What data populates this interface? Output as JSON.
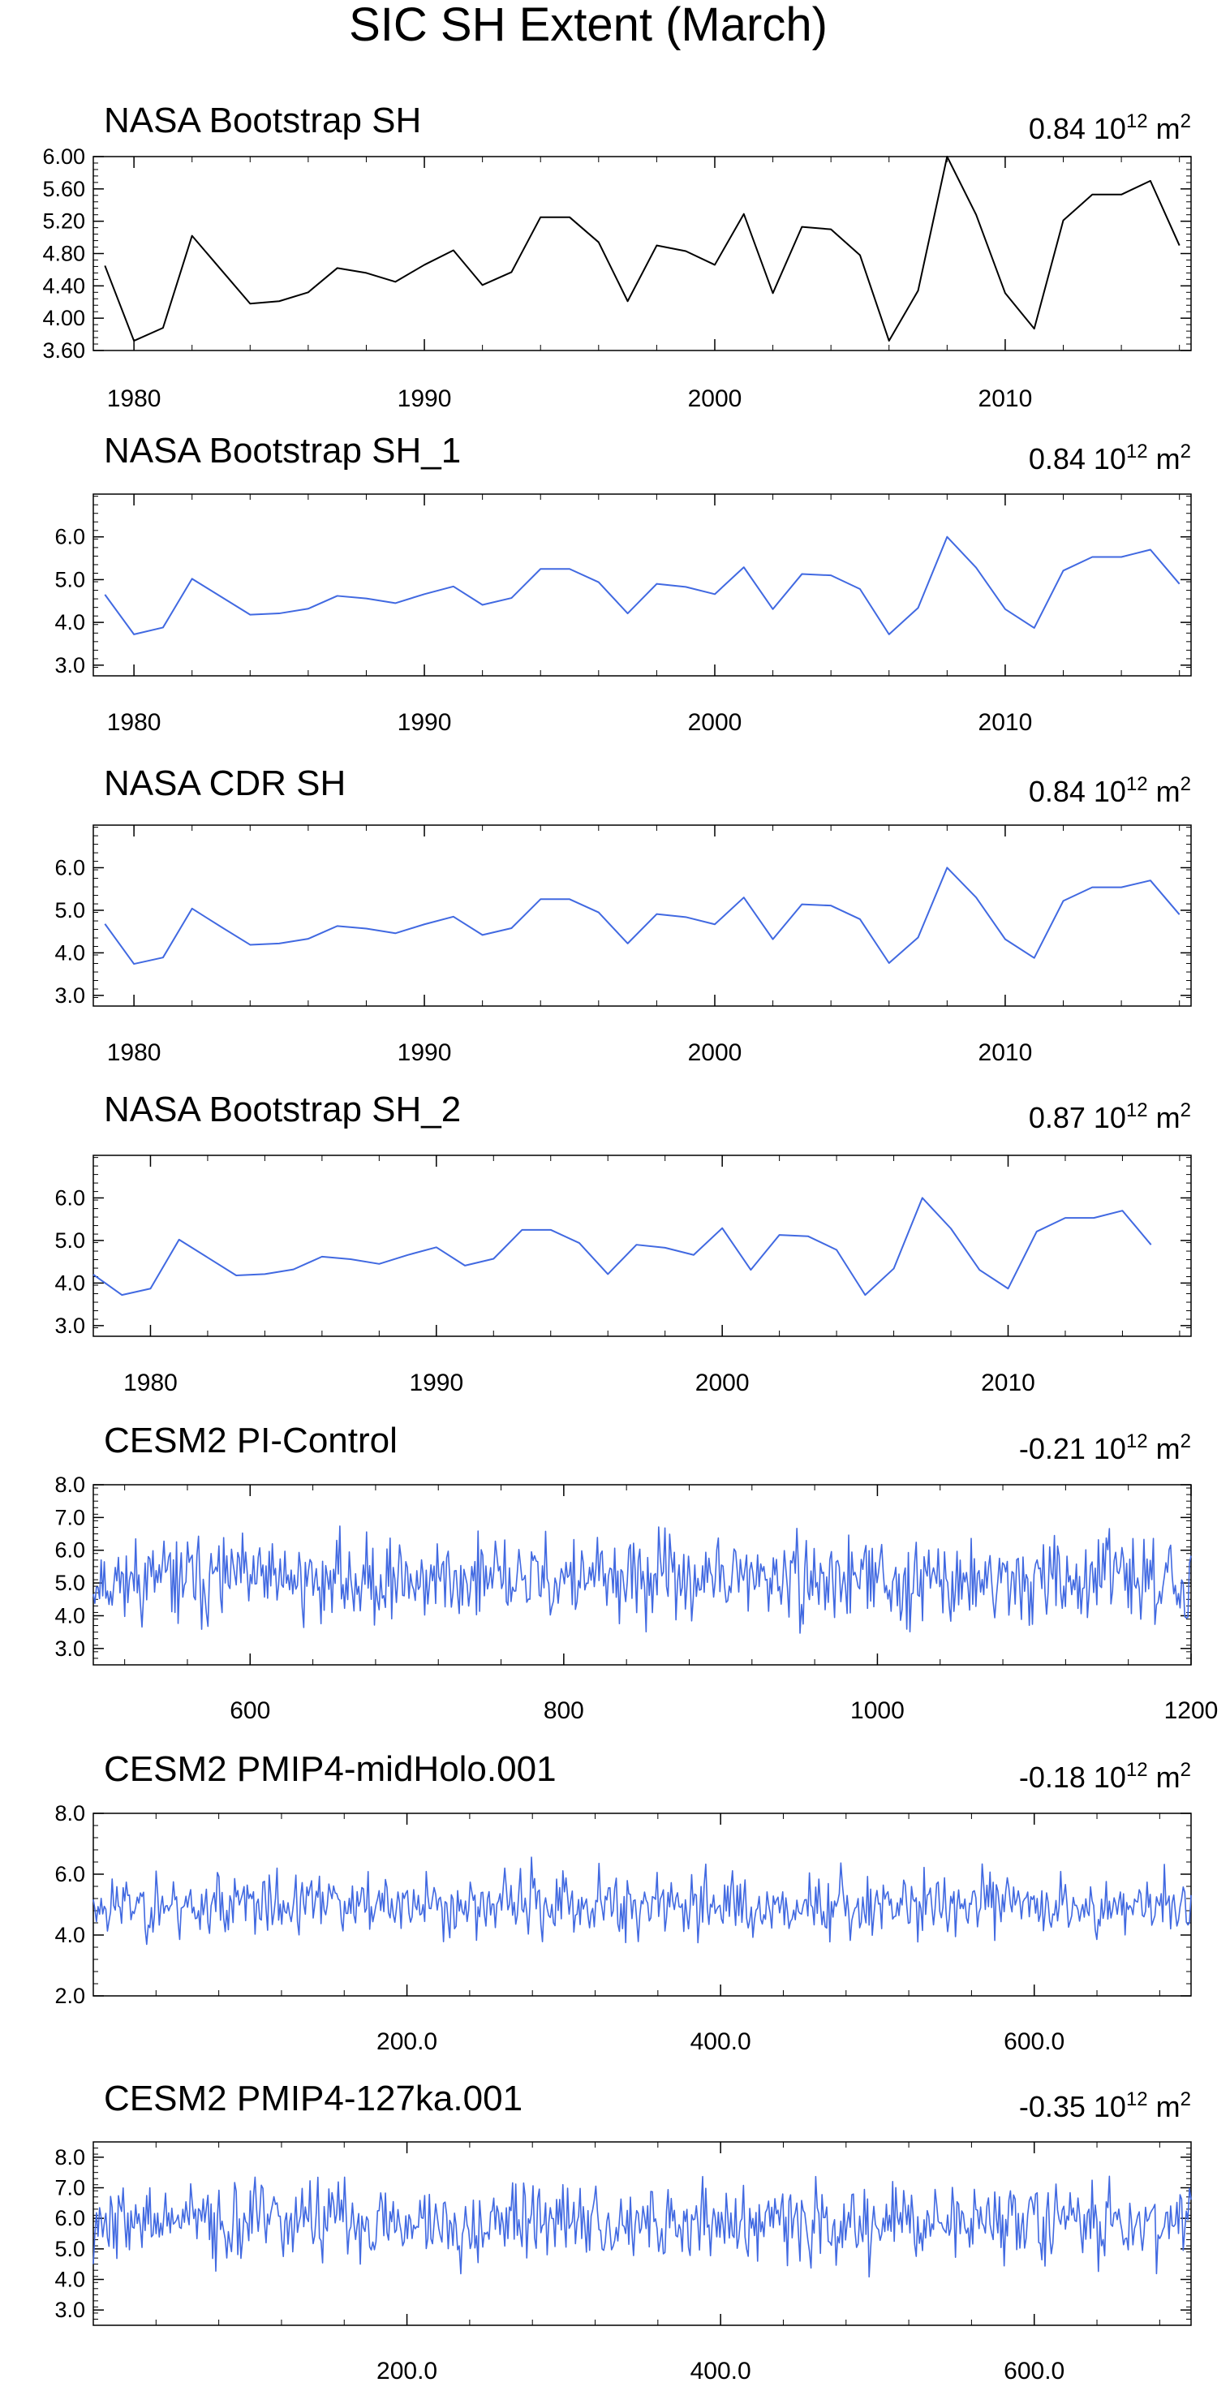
{
  "title": "SIC SH Extent (March)",
  "series_color": "#4169e1",
  "ref_color": "#000000",
  "chart_data": [
    {
      "type": "line",
      "title": "NASA Bootstrap SH",
      "stat_value": "0.84",
      "unit_base": "10",
      "unit_exp": "12",
      "unit_suffix": "m",
      "unit_suffix_exp": "2",
      "color": "#000000",
      "xlim": [
        1978.6,
        2016.4
      ],
      "ylim": [
        3.6,
        6.0
      ],
      "yticks": [
        3.6,
        4.0,
        4.4,
        4.8,
        5.2,
        5.6,
        6.0
      ],
      "ytick_labels": [
        "3.60",
        "4.00",
        "4.40",
        "4.80",
        "5.20",
        "5.60",
        "6.00"
      ],
      "xticks": [
        1980,
        1990,
        2000,
        2010
      ],
      "xtick_labels": [
        "1980",
        "1990",
        "2000",
        "2010"
      ],
      "x_start": 1979,
      "x_step": 1,
      "values": [
        4.65,
        3.72,
        3.88,
        5.02,
        4.6,
        4.18,
        4.21,
        4.32,
        4.62,
        4.56,
        4.45,
        4.66,
        4.84,
        4.41,
        4.57,
        5.25,
        5.25,
        4.94,
        4.21,
        4.9,
        4.83,
        4.66,
        5.29,
        4.31,
        5.13,
        5.1,
        4.78,
        3.72,
        4.34,
        6.0,
        5.28,
        4.31,
        3.87,
        5.21,
        5.53,
        5.53,
        5.7,
        4.9
      ]
    },
    {
      "type": "line",
      "title": "NASA Bootstrap SH_1",
      "stat_value": "0.84",
      "unit_base": "10",
      "unit_exp": "12",
      "unit_suffix": "m",
      "unit_suffix_exp": "2",
      "color": "#4169e1",
      "xlim": [
        1978.6,
        2016.4
      ],
      "ylim": [
        2.75,
        7.0
      ],
      "yticks": [
        3.0,
        4.0,
        5.0,
        6.0
      ],
      "ytick_labels": [
        "3.0",
        "4.0",
        "5.0",
        "6.0"
      ],
      "xticks": [
        1980,
        1990,
        2000,
        2010
      ],
      "xtick_labels": [
        "1980",
        "1990",
        "2000",
        "2010"
      ],
      "x_start": 1979,
      "x_step": 1,
      "values": [
        4.65,
        3.72,
        3.88,
        5.02,
        4.6,
        4.18,
        4.21,
        4.32,
        4.62,
        4.56,
        4.45,
        4.66,
        4.84,
        4.41,
        4.57,
        5.25,
        5.25,
        4.94,
        4.21,
        4.9,
        4.83,
        4.66,
        5.29,
        4.31,
        5.13,
        5.1,
        4.78,
        3.72,
        4.34,
        6.0,
        5.28,
        4.31,
        3.87,
        5.21,
        5.53,
        5.53,
        5.7,
        4.9
      ]
    },
    {
      "type": "line",
      "title": "NASA CDR SH",
      "stat_value": "0.84",
      "unit_base": "10",
      "unit_exp": "12",
      "unit_suffix": "m",
      "unit_suffix_exp": "2",
      "color": "#4169e1",
      "xlim": [
        1978.6,
        2016.4
      ],
      "ylim": [
        2.75,
        7.0
      ],
      "yticks": [
        3.0,
        4.0,
        5.0,
        6.0
      ],
      "ytick_labels": [
        "3.0",
        "4.0",
        "5.0",
        "6.0"
      ],
      "xticks": [
        1980,
        1990,
        2000,
        2010
      ],
      "xtick_labels": [
        "1980",
        "1990",
        "2000",
        "2010"
      ],
      "x_start": 1979,
      "x_step": 1,
      "values": [
        4.68,
        3.74,
        3.89,
        5.04,
        4.61,
        4.19,
        4.22,
        4.33,
        4.63,
        4.57,
        4.46,
        4.67,
        4.85,
        4.42,
        4.58,
        5.26,
        5.26,
        4.95,
        4.22,
        4.91,
        4.84,
        4.67,
        5.3,
        4.32,
        5.14,
        5.11,
        4.79,
        3.76,
        4.36,
        6.0,
        5.3,
        4.32,
        3.88,
        5.22,
        5.54,
        5.54,
        5.7,
        4.9
      ]
    },
    {
      "type": "line",
      "title": "NASA Bootstrap SH_2",
      "stat_value": "0.87",
      "unit_base": "10",
      "unit_exp": "12",
      "unit_suffix": "m",
      "unit_suffix_exp": "2",
      "color": "#4169e1",
      "xlim": [
        1978.0,
        2016.4
      ],
      "ylim": [
        2.75,
        7.0
      ],
      "yticks": [
        3.0,
        4.0,
        5.0,
        6.0
      ],
      "ytick_labels": [
        "3.0",
        "4.0",
        "5.0",
        "6.0"
      ],
      "xticks": [
        1980,
        1990,
        2000,
        2010
      ],
      "xtick_labels": [
        "1980",
        "1990",
        "2000",
        "2010"
      ],
      "x_start": 1978,
      "x_step": 1,
      "values": [
        4.2,
        3.72,
        3.87,
        5.02,
        4.6,
        4.18,
        4.21,
        4.32,
        4.62,
        4.56,
        4.45,
        4.66,
        4.84,
        4.41,
        4.57,
        5.25,
        5.25,
        4.94,
        4.21,
        4.9,
        4.83,
        4.66,
        5.29,
        4.31,
        5.13,
        5.1,
        4.78,
        3.72,
        4.34,
        6.0,
        5.28,
        4.31,
        3.87,
        5.21,
        5.53,
        5.53,
        5.7,
        4.9
      ]
    },
    {
      "type": "line",
      "title": "CESM2 PI-Control",
      "stat_value": "-0.21",
      "unit_base": "10",
      "unit_exp": "12",
      "unit_suffix": "m",
      "unit_suffix_exp": "2",
      "color": "#4169e1",
      "xlim": [
        500,
        1200
      ],
      "ylim": [
        2.5,
        8.0
      ],
      "yticks": [
        3.0,
        4.0,
        5.0,
        6.0,
        7.0,
        8.0
      ],
      "ytick_labels": [
        "3.0",
        "4.0",
        "5.0",
        "6.0",
        "7.0",
        "8.0"
      ],
      "xticks": [
        600,
        800,
        1000,
        1200
      ],
      "xtick_labels": [
        "600",
        "800",
        "1000",
        "1200"
      ],
      "synthetic": {
        "n": 700,
        "x0": 500,
        "x1": 1200,
        "mean": 5.1,
        "sd": 0.62,
        "min": 3.3,
        "max": 6.9,
        "seed": 11
      }
    },
    {
      "type": "line",
      "title": "CESM2 PMIP4-midHolo.001",
      "stat_value": "-0.18",
      "unit_base": "10",
      "unit_exp": "12",
      "unit_suffix": "m",
      "unit_suffix_exp": "2",
      "color": "#4169e1",
      "xlim": [
        0,
        700
      ],
      "ylim": [
        2.0,
        8.0
      ],
      "yticks": [
        2.0,
        4.0,
        6.0,
        8.0
      ],
      "ytick_labels": [
        "2.0",
        "4.0",
        "6.0",
        "8.0"
      ],
      "xticks": [
        200,
        400,
        600
      ],
      "xtick_labels": [
        "200.0",
        "400.0",
        "600.0"
      ],
      "synthetic": {
        "n": 700,
        "x0": 0,
        "x1": 700,
        "mean": 5.0,
        "sd": 0.52,
        "min": 2.9,
        "max": 7.1,
        "seed": 23
      }
    },
    {
      "type": "line",
      "title": "CESM2 PMIP4-127ka.001",
      "stat_value": "-0.35",
      "unit_base": "10",
      "unit_exp": "12",
      "unit_suffix": "m",
      "unit_suffix_exp": "2",
      "color": "#4169e1",
      "xlim": [
        0,
        700
      ],
      "ylim": [
        2.5,
        8.5
      ],
      "yticks": [
        3.0,
        4.0,
        5.0,
        6.0,
        7.0,
        8.0
      ],
      "ytick_labels": [
        "3.0",
        "4.0",
        "5.0",
        "6.0",
        "7.0",
        "8.0"
      ],
      "xticks": [
        200,
        400,
        600
      ],
      "xtick_labels": [
        "200.0",
        "400.0",
        "600.0"
      ],
      "synthetic": {
        "n": 700,
        "x0": 0,
        "x1": 700,
        "mean": 5.9,
        "sd": 0.62,
        "min": 4.0,
        "max": 7.4,
        "seed": 37
      }
    }
  ]
}
